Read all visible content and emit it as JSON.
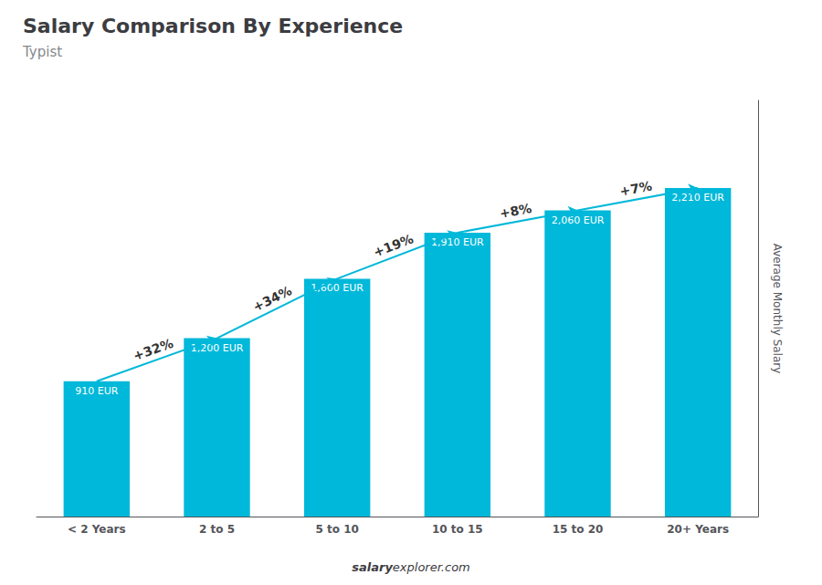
{
  "chart_data": {
    "type": "bar",
    "title": "Salary Comparison By Experience",
    "subtitle": "Typist",
    "categories": [
      "< 2 Years",
      "2 to 5",
      "5 to 10",
      "10 to 15",
      "15 to 20",
      "20+ Years"
    ],
    "values": [
      910,
      1200,
      1600,
      1910,
      2060,
      2210
    ],
    "value_labels": [
      "910 EUR",
      "1,200 EUR",
      "1,600 EUR",
      "1,910 EUR",
      "2,060 EUR",
      "2,210 EUR"
    ],
    "data_labels": true,
    "color": "#00b8d9",
    "ylabel": "Average Monthly Salary",
    "ylim": [
      0,
      2800
    ],
    "tick_labels": "x",
    "grid": false,
    "annotations": [
      {
        "text": "+32%",
        "from": "< 2 Years",
        "to": "2 to 5"
      },
      {
        "text": "+34%",
        "from": "2 to 5",
        "to": "5 to 10"
      },
      {
        "text": "+19%",
        "from": "5 to 10",
        "to": "10 to 15"
      },
      {
        "text": "+8%",
        "from": "10 to 15",
        "to": "15 to 20"
      },
      {
        "text": "+7%",
        "from": "15 to 20",
        "to": "20+ Years"
      }
    ],
    "watermark": [
      "salary",
      "explorer.com"
    ]
  }
}
